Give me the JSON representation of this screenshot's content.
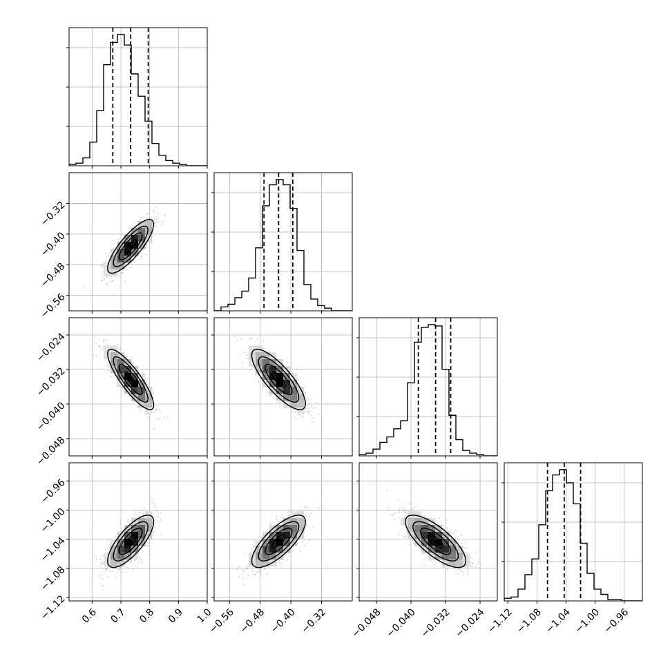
{
  "chart_data": {
    "type": "corner",
    "parameters": [
      {
        "index": 0,
        "range": [
          0.52,
          1.0
        ],
        "ticks": [
          0.6,
          0.7,
          0.8,
          0.9,
          1.0
        ],
        "tick_labels": [
          "0.6",
          "0.7",
          "0.8",
          "0.9",
          "1.0"
        ],
        "quantiles": [
          0.672,
          0.734,
          0.795
        ],
        "hist_edges_range": [
          0.52,
          1.0
        ],
        "hist_density": [
          0.01,
          0.02,
          0.06,
          0.18,
          0.42,
          0.77,
          0.94,
          1.0,
          0.92,
          0.7,
          0.53,
          0.34,
          0.17,
          0.08,
          0.04,
          0.02,
          0.01,
          0.0,
          0.0,
          0.0
        ]
      },
      {
        "index": 1,
        "range": [
          -0.6,
          -0.24
        ],
        "ticks": [
          -0.56,
          -0.48,
          -0.4,
          -0.32
        ],
        "tick_labels": [
          "−0.56",
          "−0.48",
          "−0.40",
          "−0.32"
        ],
        "quantiles": [
          -0.47,
          -0.432,
          -0.395
        ],
        "hist_edges_range": [
          -0.6,
          -0.24
        ],
        "hist_density": [
          0.0,
          0.03,
          0.05,
          0.1,
          0.15,
          0.25,
          0.48,
          0.8,
          0.96,
          1.0,
          0.96,
          0.78,
          0.46,
          0.2,
          0.09,
          0.04,
          0.02,
          0.0,
          0.0,
          0.0
        ]
      },
      {
        "index": 2,
        "range": [
          -0.052,
          -0.02
        ],
        "ticks": [
          -0.048,
          -0.04,
          -0.032,
          -0.024
        ],
        "tick_labels": [
          "−0.048",
          "−0.040",
          "−0.032",
          "−0.024"
        ],
        "quantiles": [
          -0.0383,
          -0.0343,
          -0.0308
        ],
        "hist_edges_range": [
          -0.052,
          -0.02
        ],
        "hist_density": [
          0.01,
          0.02,
          0.05,
          0.1,
          0.14,
          0.2,
          0.26,
          0.54,
          0.84,
          0.95,
          0.97,
          0.96,
          0.64,
          0.3,
          0.12,
          0.04,
          0.02,
          0.01,
          0.0,
          0.0
        ]
      },
      {
        "index": 3,
        "range": [
          -1.125,
          -0.935
        ],
        "ticks": [
          -1.12,
          -1.08,
          -1.04,
          -1.0,
          -0.96
        ],
        "tick_labels": [
          "−1.12",
          "−1.08",
          "−1.04",
          "−1.00",
          "−0.96"
        ],
        "quantiles": [
          -1.0655,
          -1.0425,
          -1.02
        ],
        "hist_edges_range": [
          -1.125,
          -0.935
        ],
        "hist_density": [
          0.02,
          0.03,
          0.09,
          0.2,
          0.32,
          0.58,
          0.84,
          0.96,
          1.0,
          0.9,
          0.74,
          0.44,
          0.21,
          0.09,
          0.05,
          0.01,
          0.01,
          0.0,
          0.0,
          0.0
        ]
      }
    ],
    "correlations": {
      "1_0": 0.82,
      "2_0": -0.85,
      "2_1": -0.8,
      "3_0": 0.75,
      "3_1": 0.75,
      "3_2": -0.75
    },
    "sigmas": {
      "0": 0.04,
      "1": 0.035,
      "2": 0.0035,
      "3": 0.018
    },
    "means": {
      "0": 0.734,
      "1": -0.432,
      "2": -0.0343,
      "3": -1.043
    },
    "contour_levels_sigma": [
      0.5,
      1.0,
      1.5,
      2.0
    ],
    "grid": true,
    "colors": {
      "line": "#000000",
      "grid": "#b0b0b0",
      "scatter": "#999999"
    }
  }
}
